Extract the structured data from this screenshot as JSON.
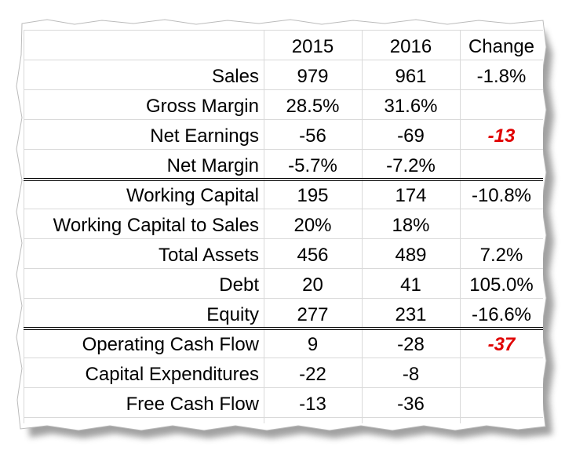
{
  "header": {
    "col1": "2015",
    "col2": "2016",
    "col3": "Change"
  },
  "rows": [
    {
      "label": "Sales",
      "v2015": "979",
      "v2016": "961",
      "change": "-1.8%"
    },
    {
      "label": "Gross Margin",
      "v2015": "28.5%",
      "v2016": "31.6%",
      "change": ""
    },
    {
      "label": "Net Earnings",
      "v2015": "-56",
      "v2016": "-69",
      "change": "-13"
    },
    {
      "label": "Net Margin",
      "v2015": "-5.7%",
      "v2016": "-7.2%",
      "change": ""
    },
    {
      "label": "Working Capital",
      "v2015": "195",
      "v2016": "174",
      "change": "-10.8%"
    },
    {
      "label": "Working Capital to Sales",
      "v2015": "20%",
      "v2016": "18%",
      "change": ""
    },
    {
      "label": "Total Assets",
      "v2015": "456",
      "v2016": "489",
      "change": "7.2%"
    },
    {
      "label": "Debt",
      "v2015": "20",
      "v2016": "41",
      "change": "105.0%"
    },
    {
      "label": "Equity",
      "v2015": "277",
      "v2016": "231",
      "change": "-16.6%"
    },
    {
      "label": "Operating Cash Flow",
      "v2015": "9",
      "v2016": "-28",
      "change": "-37"
    },
    {
      "label": "Capital Expenditures",
      "v2015": "-22",
      "v2016": "-8",
      "change": ""
    },
    {
      "label": "Free Cash Flow",
      "v2015": "-13",
      "v2016": "-36",
      "change": ""
    }
  ],
  "colors": {
    "highlight": "#e00000",
    "gridline": "#d9d9d9"
  }
}
